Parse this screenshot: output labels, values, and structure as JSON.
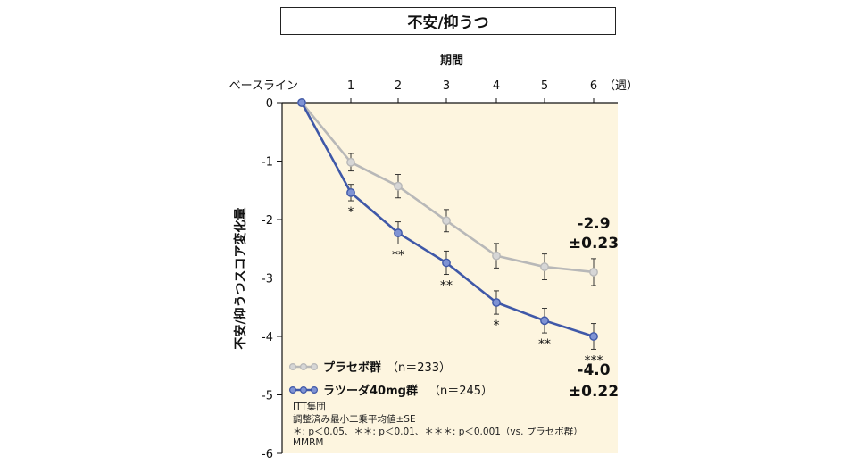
{
  "chart_data": {
    "type": "line",
    "title": "不安/抑うつ",
    "xlabel": "期間",
    "ylabel": "不安/抑うつスコア変化量",
    "categories": [
      "ベースライン",
      "1",
      "2",
      "3",
      "4",
      "5",
      "6"
    ],
    "x_unit": "（週）",
    "yticks": [
      "0",
      "-1",
      "-2",
      "-3",
      "-4",
      "-5",
      "-6"
    ],
    "ylim": [
      -6,
      0
    ],
    "series": [
      {
        "name": "プラセボ群",
        "n_label": "（n＝233）",
        "color": "#b8b8b8",
        "marker_fill": "#d6d6d6",
        "values": [
          0,
          -1.02,
          -1.43,
          -2.02,
          -2.62,
          -2.81,
          -2.9
        ],
        "errors": [
          0,
          0.15,
          0.2,
          0.19,
          0.21,
          0.22,
          0.23
        ]
      },
      {
        "name": "ラツーダ40mg群",
        "n_label": "（n＝245）",
        "color": "#3f58a8",
        "marker_fill": "#7f93d4",
        "values": [
          0,
          -1.54,
          -2.23,
          -2.74,
          -3.42,
          -3.73,
          -4.0
        ],
        "errors": [
          0,
          0.14,
          0.19,
          0.2,
          0.2,
          0.21,
          0.22
        ],
        "significance": [
          "",
          "*",
          "**",
          "**",
          "*",
          "**",
          "***"
        ]
      }
    ],
    "annotations": [
      {
        "value": "-2.9",
        "se": "±0.23"
      },
      {
        "value": "-4.0",
        "se": "±0.22"
      }
    ],
    "background_color": "#fdf5df"
  },
  "notes": {
    "population": "ITT集団",
    "adjustment": "調整済み最小二乗平均値±SE",
    "significance": "＊: p＜0.05、＊＊: p＜0.01、＊＊＊: p＜0.001（vs. プラセボ群）",
    "method": "MMRM"
  }
}
